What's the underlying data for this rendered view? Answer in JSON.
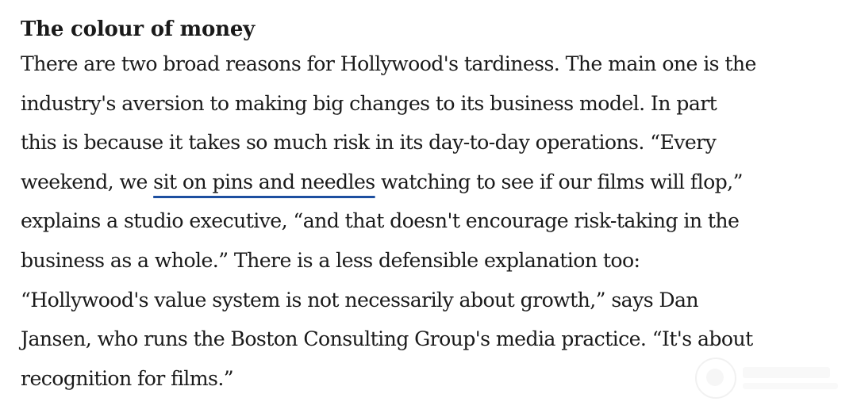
{
  "article": {
    "heading": "The colour of money",
    "lines": [
      "There are two broad reasons for Hollywood's tardiness. The main one is the",
      "industry's aversion to making big changes to its business model. In part",
      "this is because it takes so much risk in its day-to-day operations. “Every",
      "weekend, we ",
      "sit on pins and needles",
      " watching to see if our films will flop,”",
      "explains a studio executive, “and that doesn't encourage risk-taking in the",
      "business as a whole.” There is a less defensible explanation too:",
      "“Hollywood's value system is not necessarily about growth,” says Dan",
      "Jansen, who runs the Boston Consulting Group's media practice. “It's about",
      "recognition for films.”"
    ]
  },
  "highlight_color": "#1d4fa0",
  "watermark": {
    "icon": "watermark-logo-icon"
  }
}
